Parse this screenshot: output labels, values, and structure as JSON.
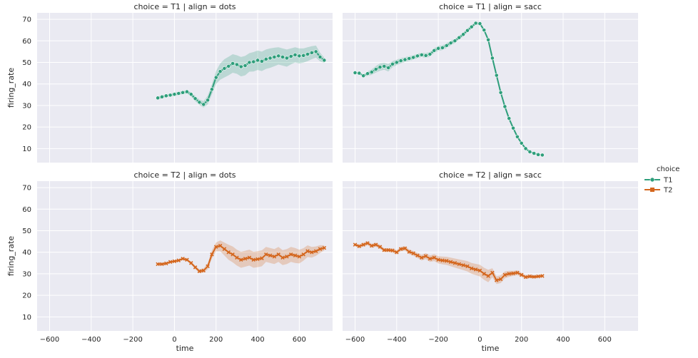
{
  "chart_data": {
    "type": "line",
    "facet_row_variable": "choice",
    "facet_col_variable": "align",
    "xlabel": "time",
    "ylabel": "firing_rate",
    "xlim": [
      -660,
      760
    ],
    "ylim": [
      3.5,
      73
    ],
    "xticks": [
      -600,
      -400,
      -200,
      0,
      200,
      400,
      600
    ],
    "yticks": [
      10,
      20,
      30,
      40,
      50,
      60,
      70
    ],
    "grid": true,
    "legend": {
      "title": "choice",
      "placement": "right",
      "entries": [
        {
          "name": "T1",
          "color": "#2e9e7b",
          "marker": "circle"
        },
        {
          "name": "T2",
          "color": "#d4661d",
          "marker": "x"
        }
      ]
    },
    "panels": [
      {
        "title": "choice = T1 | align = dots",
        "series": "T1",
        "color": "#2e9e7b",
        "marker": "circle",
        "x": [
          -80,
          -60,
          -40,
          -20,
          0,
          20,
          40,
          60,
          80,
          100,
          120,
          140,
          160,
          180,
          200,
          220,
          240,
          260,
          280,
          300,
          320,
          340,
          360,
          380,
          400,
          420,
          440,
          460,
          480,
          500,
          520,
          540,
          560,
          580,
          600,
          620,
          640,
          660,
          680,
          700,
          720
        ],
        "y": [
          33.5,
          34,
          34.5,
          34.8,
          35.2,
          35.6,
          36,
          36.4,
          35.2,
          33.2,
          31.5,
          30.5,
          32.5,
          37.5,
          43,
          45.8,
          47.2,
          48.2,
          49.5,
          49,
          48,
          48.5,
          50,
          50.3,
          51,
          50.5,
          51.5,
          52,
          52.5,
          53,
          52.5,
          52,
          52.8,
          53.5,
          53,
          53.2,
          53.8,
          54.5,
          55,
          52.5,
          51
        ],
        "band_upper": [
          34.2,
          34.7,
          35.2,
          35.5,
          36,
          36.4,
          36.8,
          37.2,
          36.2,
          34.4,
          32.8,
          32,
          34.5,
          39.8,
          46,
          49.5,
          51.5,
          52.6,
          53.8,
          53.3,
          52.5,
          53,
          54.3,
          54.8,
          55.5,
          55,
          56,
          56.5,
          56.8,
          57,
          56.5,
          56,
          56.5,
          57,
          56.5,
          56.5,
          57,
          57.5,
          57.8,
          54.5,
          52.2
        ],
        "band_lower": [
          32.8,
          33.3,
          33.8,
          34.1,
          34.4,
          34.8,
          35.2,
          35.6,
          34.2,
          32,
          30.2,
          29,
          30.5,
          35.2,
          40,
          42,
          43,
          44,
          45.2,
          44.7,
          43.5,
          44,
          45.7,
          45.8,
          46.5,
          46,
          47,
          47.5,
          48.2,
          49,
          48.5,
          48,
          49.1,
          50,
          49.5,
          49.9,
          50.6,
          51.5,
          52.2,
          50.5,
          49.8
        ]
      },
      {
        "title": "choice = T1 | align = sacc",
        "series": "T1",
        "color": "#2e9e7b",
        "marker": "circle",
        "x": [
          -600,
          -580,
          -560,
          -540,
          -520,
          -500,
          -480,
          -460,
          -440,
          -420,
          -400,
          -380,
          -360,
          -340,
          -320,
          -300,
          -280,
          -260,
          -240,
          -220,
          -200,
          -180,
          -160,
          -140,
          -120,
          -100,
          -80,
          -60,
          -40,
          -20,
          0,
          20,
          40,
          60,
          80,
          100,
          120,
          140,
          160,
          180,
          200,
          220,
          240,
          260,
          280,
          300
        ],
        "y": [
          45.2,
          45,
          43.8,
          44.8,
          45.5,
          46.8,
          47.8,
          48.2,
          47.5,
          49.2,
          50,
          50.8,
          51.3,
          51.8,
          52.3,
          53,
          53.5,
          53.2,
          53.8,
          55.5,
          56.5,
          56.8,
          57.8,
          59,
          60,
          61.5,
          63,
          64.8,
          66.5,
          68.2,
          68,
          65,
          60.5,
          52,
          44,
          36,
          29.5,
          24,
          19.5,
          15.5,
          12.5,
          10,
          8.5,
          7.8,
          7.2,
          7
        ],
        "band_upper": [
          45.7,
          45.5,
          44.3,
          45.8,
          46.8,
          48.3,
          49.5,
          49.8,
          49.2,
          50.6,
          51.3,
          52,
          52.4,
          52.9,
          53.3,
          54,
          54.5,
          54.3,
          54.9,
          56.6,
          57.6,
          57.9,
          58.9,
          60.1,
          61,
          62.4,
          63.9,
          65.7,
          67.3,
          68.9,
          68.7,
          65.7,
          61.1,
          52.6,
          44.5,
          36.5,
          30,
          24.5,
          20,
          16,
          13,
          10.4,
          8.9,
          8.1,
          7.5,
          7.3
        ],
        "band_lower": [
          44.7,
          44.5,
          43.3,
          43.8,
          44.2,
          45.3,
          46.1,
          46.6,
          45.8,
          47.8,
          48.7,
          49.6,
          50.2,
          50.7,
          51.3,
          52,
          52.5,
          52.1,
          52.7,
          54.4,
          55.4,
          55.7,
          56.7,
          57.9,
          59,
          60.6,
          62.1,
          63.9,
          65.7,
          67.5,
          67.3,
          64.3,
          59.9,
          51.4,
          43.5,
          35.5,
          29,
          23.5,
          19,
          15,
          12,
          9.6,
          8.1,
          7.5,
          6.9,
          6.7
        ]
      },
      {
        "title": "choice = T2 | align = dots",
        "series": "T2",
        "color": "#d4661d",
        "marker": "x",
        "x": [
          -80,
          -60,
          -40,
          -20,
          0,
          20,
          40,
          60,
          80,
          100,
          120,
          140,
          160,
          180,
          200,
          220,
          240,
          260,
          280,
          300,
          320,
          340,
          360,
          380,
          400,
          420,
          440,
          460,
          480,
          500,
          520,
          540,
          560,
          580,
          600,
          620,
          640,
          660,
          680,
          700,
          720
        ],
        "y": [
          34.5,
          34.5,
          34.8,
          35.5,
          35.8,
          36.2,
          37,
          36.5,
          35,
          33,
          31.2,
          31.5,
          33.5,
          39,
          42.5,
          43,
          41.5,
          40,
          39,
          37.5,
          36.5,
          37,
          37.5,
          36.5,
          36.8,
          37.2,
          39,
          38.5,
          38,
          39,
          37.5,
          38,
          39,
          38.5,
          38,
          39,
          40.5,
          40,
          40.5,
          41.5,
          42
        ],
        "band_upper": [
          35,
          35,
          35.3,
          36,
          36.3,
          36.7,
          37.6,
          37.1,
          35.7,
          33.8,
          32.1,
          32.5,
          34.9,
          40.9,
          44.5,
          45.5,
          44.5,
          43.5,
          42.7,
          41.2,
          40.2,
          40.7,
          41.2,
          40.2,
          40.5,
          40.9,
          42.5,
          42,
          41.5,
          42.5,
          41,
          41.5,
          42.5,
          42,
          41.2,
          41.9,
          43.2,
          42.5,
          42.7,
          43.3,
          43.2
        ],
        "band_lower": [
          34,
          34,
          34.3,
          35,
          35.3,
          35.7,
          36.4,
          35.9,
          34.3,
          32.2,
          30.3,
          30.5,
          32.1,
          37.1,
          40.5,
          40.5,
          38.5,
          36.5,
          35.3,
          33.8,
          32.8,
          33.3,
          33.8,
          32.8,
          33.1,
          33.5,
          35.5,
          35,
          34.5,
          35.5,
          34,
          34.5,
          35.5,
          35,
          34.8,
          36.1,
          37.8,
          37.5,
          38.3,
          39.7,
          40.8
        ]
      },
      {
        "title": "choice = T2 | align = sacc",
        "series": "T2",
        "color": "#d4661d",
        "marker": "x",
        "x": [
          -600,
          -580,
          -560,
          -540,
          -520,
          -500,
          -480,
          -460,
          -440,
          -420,
          -400,
          -380,
          -360,
          -340,
          -320,
          -300,
          -280,
          -260,
          -240,
          -220,
          -200,
          -180,
          -160,
          -140,
          -120,
          -100,
          -80,
          -60,
          -40,
          -20,
          0,
          20,
          40,
          60,
          80,
          100,
          120,
          140,
          160,
          180,
          200,
          220,
          240,
          260,
          280,
          300
        ],
        "y": [
          43.5,
          42.8,
          43.5,
          44.2,
          43,
          43.5,
          42.5,
          41,
          41,
          40.8,
          40,
          41.5,
          41.8,
          40.2,
          39.5,
          38.5,
          37.5,
          38.2,
          37,
          37.5,
          36.5,
          36.2,
          36,
          35.5,
          35,
          34.5,
          34,
          33.5,
          32.5,
          32,
          31.5,
          30,
          29,
          30.5,
          27,
          27.5,
          29.5,
          30,
          30.2,
          30.5,
          29.5,
          28.5,
          28.8,
          28.6,
          28.8,
          29
        ],
        "band_upper": [
          44,
          43.6,
          44.4,
          45.1,
          43.9,
          44.4,
          43.4,
          41.9,
          41.9,
          41.8,
          41,
          42.5,
          42.8,
          41.3,
          40.6,
          39.7,
          38.8,
          39.6,
          38.5,
          39.1,
          38.2,
          38,
          37.9,
          37.5,
          37.1,
          36.7,
          36.3,
          35.9,
          35,
          34.6,
          34.2,
          32.8,
          31.9,
          32.6,
          28.8,
          29.3,
          31.1,
          31.4,
          31.4,
          31.6,
          30.5,
          29.4,
          29.6,
          29.3,
          29.4,
          29.5
        ],
        "band_lower": [
          43,
          42,
          42.6,
          43.3,
          42.1,
          42.6,
          41.6,
          40.1,
          40.1,
          39.8,
          39,
          40.5,
          40.8,
          39.1,
          38.4,
          37.3,
          36.2,
          36.8,
          35.5,
          35.9,
          34.8,
          34.4,
          34.1,
          33.5,
          32.9,
          32.3,
          31.7,
          31.1,
          30,
          29.4,
          28.8,
          27.2,
          26.1,
          28.4,
          25.2,
          25.7,
          27.9,
          28.6,
          29,
          29.4,
          28.5,
          27.6,
          28,
          27.9,
          28.2,
          28.5
        ]
      }
    ]
  }
}
